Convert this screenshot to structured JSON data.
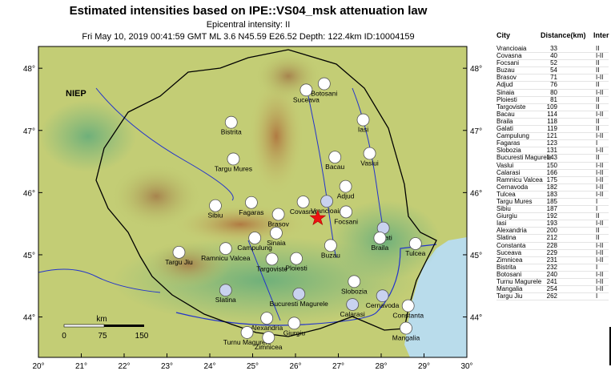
{
  "title": "Estimated intensities based on IPE::VS04_msk attenuation law",
  "epicentral_intensity": "Epicentral intensity: II",
  "event_line": "Fri May 10, 2019 00:41:59 GMT ML 3.6 N45.59 E26.52 Depth: 122.4km ID:10004159",
  "niep_label": "NIEP",
  "table_headers": {
    "city": "City",
    "distance": "Distance(km)",
    "intensity": "Inter"
  },
  "cities": [
    {
      "name": "Vrancioaia",
      "dist": "33",
      "int": "II"
    },
    {
      "name": "Covasna",
      "dist": "40",
      "int": "I-II"
    },
    {
      "name": "Focsani",
      "dist": "52",
      "int": "II"
    },
    {
      "name": "Buzau",
      "dist": "54",
      "int": "II"
    },
    {
      "name": "Brasov",
      "dist": "71",
      "int": "I-II"
    },
    {
      "name": "Adjud",
      "dist": "76",
      "int": "II"
    },
    {
      "name": "Sinaia",
      "dist": "80",
      "int": "I-II"
    },
    {
      "name": "Ploiesti",
      "dist": "81",
      "int": "II"
    },
    {
      "name": "Targoviste",
      "dist": "109",
      "int": "II"
    },
    {
      "name": "Bacau",
      "dist": "114",
      "int": "I-II"
    },
    {
      "name": "Braila",
      "dist": "118",
      "int": "II"
    },
    {
      "name": "Galati",
      "dist": "119",
      "int": "II"
    },
    {
      "name": "Campulung",
      "dist": "121",
      "int": "I-II"
    },
    {
      "name": "Fagaras",
      "dist": "123",
      "int": "I"
    },
    {
      "name": "Slobozia",
      "dist": "131",
      "int": "I-II"
    },
    {
      "name": "Bucuresti Magurele",
      "dist": "143",
      "int": "II"
    },
    {
      "name": "Vaslui",
      "dist": "150",
      "int": "I-II"
    },
    {
      "name": "Calarasi",
      "dist": "166",
      "int": "I-II"
    },
    {
      "name": "Ramnicu Valcea",
      "dist": "175",
      "int": "I-II"
    },
    {
      "name": "Cernavoda",
      "dist": "182",
      "int": "I-II"
    },
    {
      "name": "Tulcea",
      "dist": "183",
      "int": "I-II"
    },
    {
      "name": "Targu Mures",
      "dist": "185",
      "int": "I"
    },
    {
      "name": "Sibiu",
      "dist": "187",
      "int": "I"
    },
    {
      "name": "Giurgiu",
      "dist": "192",
      "int": "II"
    },
    {
      "name": "Iasi",
      "dist": "193",
      "int": "I-II"
    },
    {
      "name": "Alexandria",
      "dist": "200",
      "int": "II"
    },
    {
      "name": "Slatina",
      "dist": "212",
      "int": "II"
    },
    {
      "name": "Constanta",
      "dist": "228",
      "int": "I-II"
    },
    {
      "name": "Suceava",
      "dist": "229",
      "int": "I-II"
    },
    {
      "name": "Zimnicea",
      "dist": "231",
      "int": "I-II"
    },
    {
      "name": "Bistrita",
      "dist": "232",
      "int": "I"
    },
    {
      "name": "Botosani",
      "dist": "240",
      "int": "I-II"
    },
    {
      "name": "Turnu Magurele",
      "dist": "241",
      "int": "I-II"
    },
    {
      "name": "Mangalia",
      "dist": "254",
      "int": "I-II"
    },
    {
      "name": "Targu Jiu",
      "dist": "262",
      "int": "I"
    }
  ],
  "map": {
    "lon_ticks": [
      "20°",
      "21°",
      "22°",
      "23°",
      "24°",
      "25°",
      "26°",
      "27°",
      "28°",
      "29°",
      "30°"
    ],
    "lat_ticks": [
      "48°",
      "47°",
      "46°",
      "45°",
      "44°"
    ],
    "lat_values": [
      48,
      47,
      46,
      45,
      44
    ],
    "lon_range": [
      20,
      30
    ],
    "lat_range": [
      43.35,
      48.35
    ],
    "epicenter": {
      "lon": 26.52,
      "lat": 45.59,
      "color": "#ee1111"
    },
    "scale_bar": {
      "unit": "km",
      "ticks": [
        "0",
        "75",
        "150"
      ]
    },
    "colors": {
      "sea": "#b9dceb",
      "land": "#c7cf74",
      "mountain": "#b07a42",
      "border": "#000000",
      "river": "#2233cc",
      "station_fill": "#ffffff",
      "station_fill_blue": "#c9d2ef"
    },
    "places": [
      {
        "name": "Suceava",
        "lon": 26.25,
        "lat": 47.65,
        "fill": "w"
      },
      {
        "name": "Botosani",
        "lon": 26.67,
        "lat": 47.75,
        "fill": "w"
      },
      {
        "name": "Iasi",
        "lon": 27.58,
        "lat": 47.17,
        "fill": "w"
      },
      {
        "name": "Bistrita",
        "lon": 24.5,
        "lat": 47.13,
        "fill": "w"
      },
      {
        "name": "Vaslui",
        "lon": 27.73,
        "lat": 46.63,
        "fill": "w"
      },
      {
        "name": "Bacau",
        "lon": 26.92,
        "lat": 46.57,
        "fill": "w"
      },
      {
        "name": "Targu Mures",
        "lon": 24.55,
        "lat": 46.54,
        "fill": "w"
      },
      {
        "name": "Adjud",
        "lon": 27.17,
        "lat": 46.1,
        "fill": "w"
      },
      {
        "name": "Vrancioaia",
        "lon": 26.73,
        "lat": 45.86,
        "fill": "b"
      },
      {
        "name": "Fagaras",
        "lon": 24.97,
        "lat": 45.84,
        "fill": "w"
      },
      {
        "name": "Covasna",
        "lon": 26.18,
        "lat": 45.85,
        "fill": "w"
      },
      {
        "name": "Sibiu",
        "lon": 24.13,
        "lat": 45.79,
        "fill": "w"
      },
      {
        "name": "Focsani",
        "lon": 27.18,
        "lat": 45.69,
        "fill": "w"
      },
      {
        "name": "Brasov",
        "lon": 25.6,
        "lat": 45.65,
        "fill": "w"
      },
      {
        "name": "Galati",
        "lon": 28.05,
        "lat": 45.43,
        "fill": "b"
      },
      {
        "name": "Campulung",
        "lon": 25.05,
        "lat": 45.27,
        "fill": "w"
      },
      {
        "name": "Sinaia",
        "lon": 25.55,
        "lat": 45.35,
        "fill": "w"
      },
      {
        "name": "Braila",
        "lon": 27.97,
        "lat": 45.27,
        "fill": "w"
      },
      {
        "name": "Tulcea",
        "lon": 28.8,
        "lat": 45.18,
        "fill": "w"
      },
      {
        "name": "Buzau",
        "lon": 26.82,
        "lat": 45.15,
        "fill": "w"
      },
      {
        "name": "Ramnicu Valcea",
        "lon": 24.37,
        "lat": 45.1,
        "fill": "w"
      },
      {
        "name": "Targu Jiu",
        "lon": 23.28,
        "lat": 45.04,
        "fill": "w"
      },
      {
        "name": "Targoviste",
        "lon": 25.45,
        "lat": 44.93,
        "fill": "w"
      },
      {
        "name": "Ploiesti",
        "lon": 26.02,
        "lat": 44.94,
        "fill": "w"
      },
      {
        "name": "Slobozia",
        "lon": 27.37,
        "lat": 44.57,
        "fill": "w"
      },
      {
        "name": "Slatina",
        "lon": 24.37,
        "lat": 44.43,
        "fill": "b"
      },
      {
        "name": "Bucuresti Magurele",
        "lon": 26.08,
        "lat": 44.37,
        "fill": "b"
      },
      {
        "name": "Cernavoda",
        "lon": 28.03,
        "lat": 44.34,
        "fill": "b"
      },
      {
        "name": "Calarasi",
        "lon": 27.33,
        "lat": 44.2,
        "fill": "b"
      },
      {
        "name": "Constanta",
        "lon": 28.63,
        "lat": 44.18,
        "fill": "w"
      },
      {
        "name": "Alexandria",
        "lon": 25.33,
        "lat": 43.98,
        "fill": "w"
      },
      {
        "name": "Giurgiu",
        "lon": 25.97,
        "lat": 43.9,
        "fill": "w"
      },
      {
        "name": "Mangalia",
        "lon": 28.58,
        "lat": 43.82,
        "fill": "w"
      },
      {
        "name": "Turnu Magurele",
        "lon": 24.87,
        "lat": 43.75,
        "fill": "w"
      },
      {
        "name": "Zimnicea",
        "lon": 25.37,
        "lat": 43.67,
        "fill": "w"
      }
    ]
  }
}
